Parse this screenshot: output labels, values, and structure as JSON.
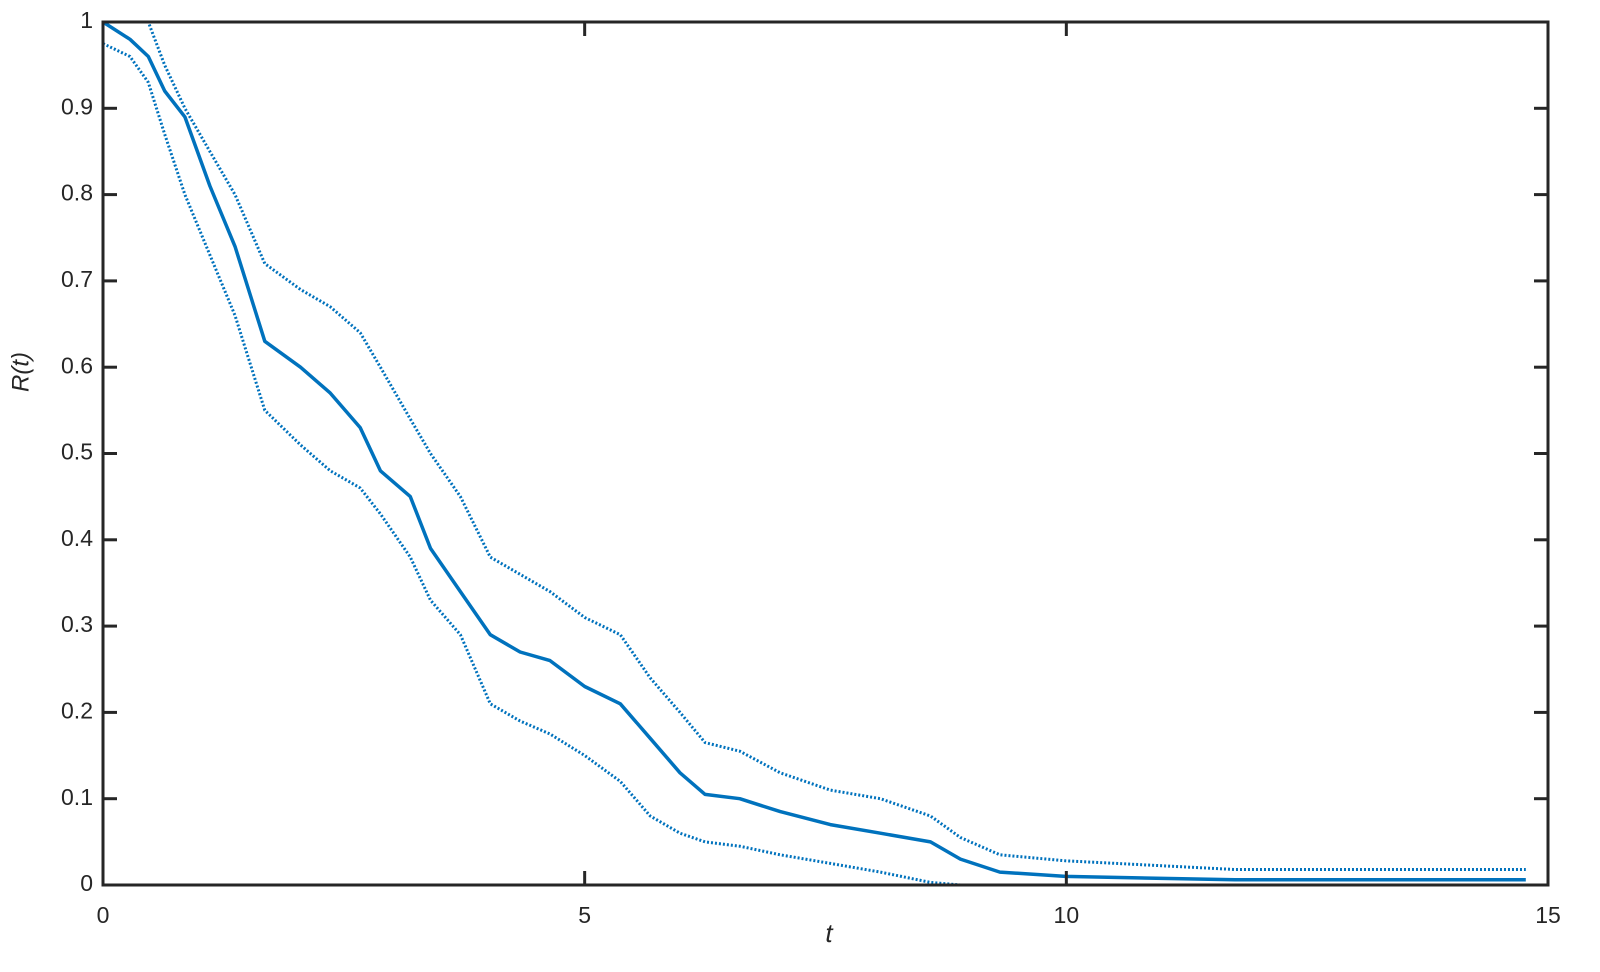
{
  "chart_data": {
    "type": "line",
    "xlabel": "t",
    "ylabel": "R(t)",
    "x": [
      0,
      0.28,
      0.47,
      0.64,
      0.85,
      1.11,
      1.37,
      1.68,
      2.05,
      2.36,
      2.67,
      2.88,
      3.19,
      3.4,
      3.71,
      4.02,
      4.33,
      4.64,
      5.0,
      5.37,
      5.68,
      5.99,
      6.25,
      6.61,
      7.03,
      7.55,
      8.07,
      8.59,
      8.9,
      9.31,
      9.99,
      11.75,
      14.77
    ],
    "series": [
      {
        "color": "#0072bd",
        "line_style": "solid",
        "values": [
          1,
          0.98,
          0.96,
          0.92,
          0.89,
          0.81,
          0.74,
          0.63,
          0.6,
          0.57,
          0.53,
          0.48,
          0.45,
          0.39,
          0.34,
          0.29,
          0.27,
          0.26,
          0.23,
          0.21,
          0.17,
          0.13,
          0.105,
          0.1,
          0.085,
          0.07,
          0.06,
          0.05,
          0.03,
          0.015,
          0.01,
          0.006,
          0.006
        ]
      },
      {
        "color": "#0072bd",
        "line_style": "dotted",
        "values": [
          1,
          1,
          1,
          0.95,
          0.9,
          0.85,
          0.8,
          0.72,
          0.69,
          0.67,
          0.64,
          0.6,
          0.54,
          0.5,
          0.45,
          0.38,
          0.36,
          0.34,
          0.31,
          0.29,
          0.24,
          0.2,
          0.165,
          0.155,
          0.13,
          0.11,
          0.1,
          0.08,
          0.055,
          0.035,
          0.028,
          0.018,
          0.018
        ]
      },
      {
        "color": "#0072bd",
        "line_style": "dotted",
        "values": [
          0.975,
          0.96,
          0.93,
          0.87,
          0.8,
          0.73,
          0.66,
          0.55,
          0.51,
          0.48,
          0.46,
          0.43,
          0.38,
          0.33,
          0.29,
          0.21,
          0.19,
          0.175,
          0.15,
          0.12,
          0.08,
          0.06,
          0.05,
          0.045,
          0.035,
          0.025,
          0.015,
          0.003,
          0,
          0,
          0,
          0,
          0
        ]
      }
    ],
    "xlim": [
      0,
      15
    ],
    "xticks": [
      0,
      5,
      10,
      15
    ],
    "ylim": [
      0,
      1
    ],
    "yticks": [
      0,
      0.1,
      0.2,
      0.3,
      0.4,
      0.5,
      0.6,
      0.7,
      0.8,
      0.9,
      1
    ],
    "box": true
  }
}
